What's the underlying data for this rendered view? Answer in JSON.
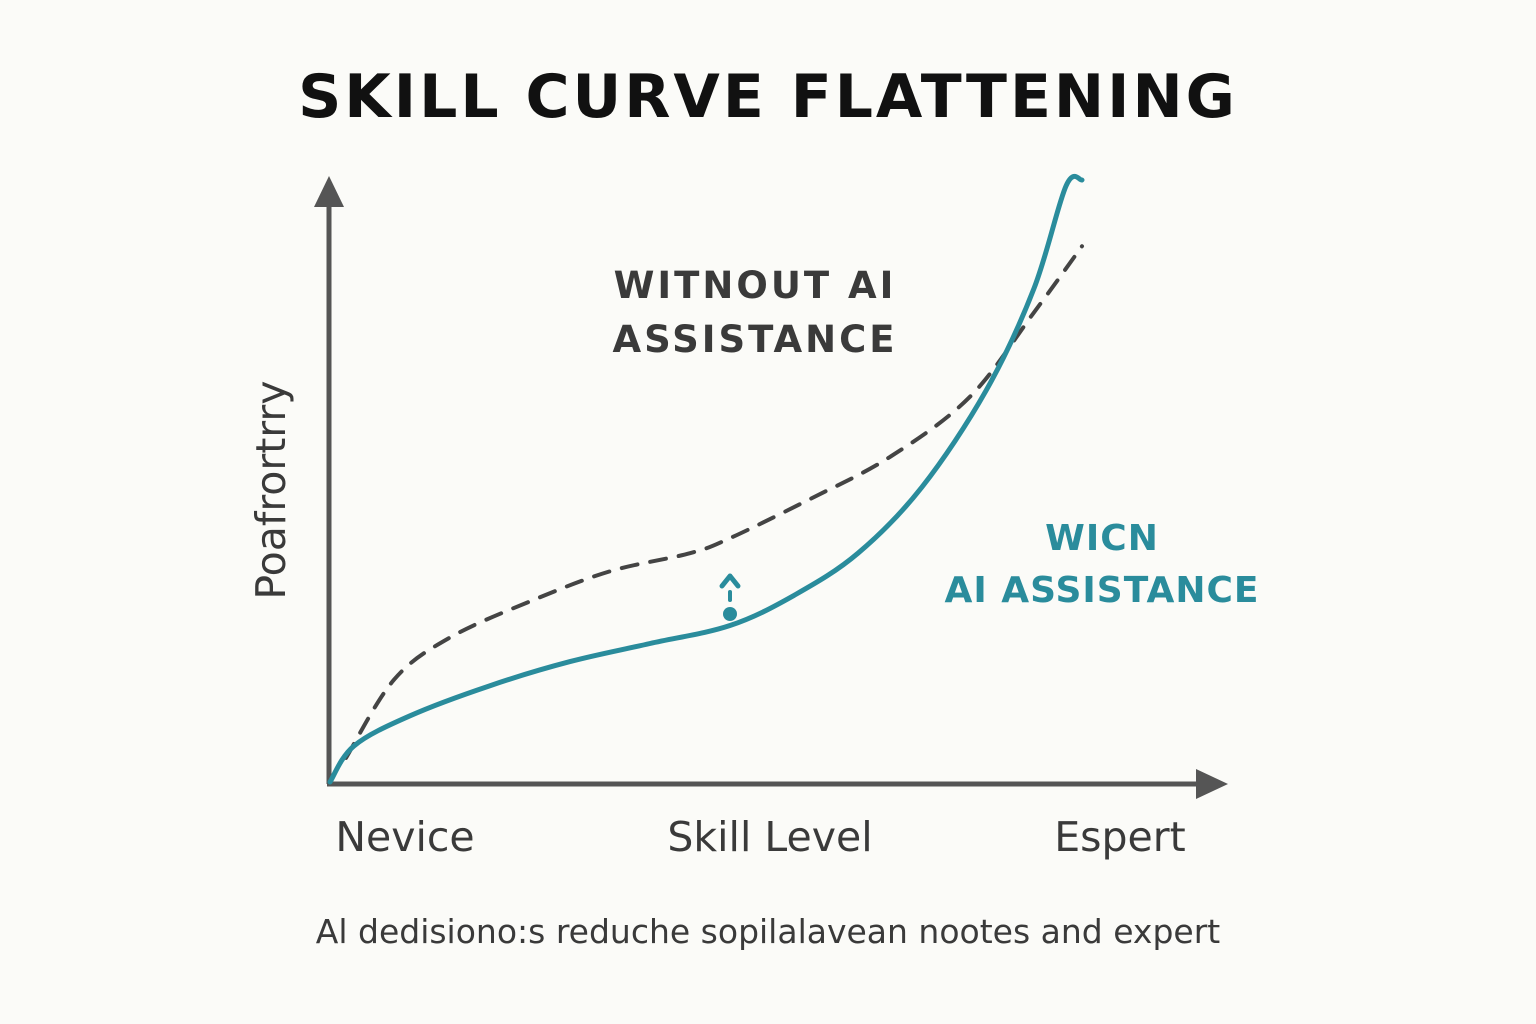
{
  "chart_data": {
    "type": "line",
    "title": "SKILL CURVE FLATTENING",
    "xlabel": "Skill Level",
    "ylabel": "Poafrortrry",
    "x_tick_labels": [
      "Nevice",
      "Skill Level",
      "Espert"
    ],
    "caption": "Al dedisiono:s reduche sopilalavean nootes and expert",
    "xlim": [
      0,
      100
    ],
    "ylim": [
      0,
      100
    ],
    "grid": false,
    "legend": "inline",
    "series": [
      {
        "name": "Without AI assistance",
        "label_lines": [
          "WITNOUT AI",
          "ASSISTANCE"
        ],
        "style": "dashed",
        "color": "#444444",
        "x": [
          2,
          8,
          15,
          25,
          35,
          45,
          50,
          60,
          70,
          80,
          88,
          94
        ],
        "y": [
          4,
          17,
          24,
          30,
          35,
          38,
          40.5,
          47,
          54,
          64,
          78,
          89
        ]
      },
      {
        "name": "With AI assistance",
        "label_lines": [
          "WICN",
          "AI ASSISTANCE"
        ],
        "style": "solid",
        "color": "#2a8c9c",
        "x": [
          0,
          3,
          10,
          20,
          30,
          40,
          50,
          58,
          66,
          74,
          82,
          88,
          92,
          94
        ],
        "y": [
          0,
          6,
          11,
          16,
          20,
          23,
          26,
          31,
          38,
          49,
          65,
          82,
          99,
          100
        ]
      }
    ],
    "annotation": {
      "type": "gap-arrow",
      "x": 50,
      "color": "#2a8c9c"
    }
  }
}
